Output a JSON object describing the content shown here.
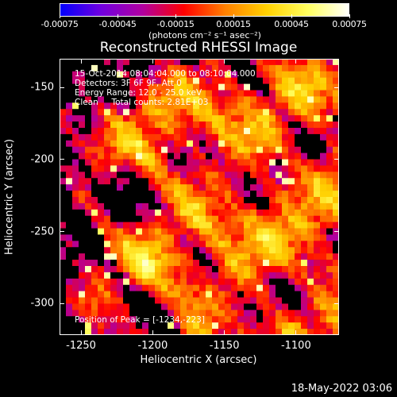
{
  "colorbar": {
    "tick_labels": [
      "-0.00075",
      "-0.00045",
      "-0.00015",
      "0.00015",
      "0.00045",
      "0.00075"
    ],
    "units": "(photons cm⁻² s⁻¹ asec⁻²)"
  },
  "title": "Reconstructed RHESSI Image",
  "info": {
    "time_range": "15-Oct-2014 08:04:04.000 to 08:10:04.000",
    "detectors": "Detectors: 3F 6F 9F, Att 0",
    "energy": "Energy Range: 12.0 - 25.0 keV",
    "method": "Clean     Total counts: 2.81E+03"
  },
  "peak": "Position of Peak = [-1234,-223]",
  "x_axis": {
    "label": "Heliocentric X (arcsec)",
    "ticks": [
      "-1250",
      "-1200",
      "-1150",
      "-1100"
    ]
  },
  "y_axis": {
    "label": "Heliocentric Y (arcsec)",
    "ticks": [
      "-150",
      "-200",
      "-250",
      "-300"
    ]
  },
  "footer_timestamp": "18-May-2022 03:06",
  "chart_data": {
    "type": "heatmap",
    "title": "Reconstructed RHESSI Image",
    "xlabel": "Heliocentric X (arcsec)",
    "ylabel": "Heliocentric Y (arcsec)",
    "xlim": [
      -1265,
      -1070
    ],
    "ylim": [
      -322,
      -130
    ],
    "x_ticks": [
      -1250,
      -1200,
      -1150,
      -1100
    ],
    "y_ticks": [
      -150,
      -200,
      -250,
      -300
    ],
    "colorbar_range": [
      -0.00075,
      0.00075
    ],
    "colormap": [
      "#0000ff",
      "#7000e0",
      "#b000a0",
      "#ff0000",
      "#ff8000",
      "#ffd000",
      "#ffff60",
      "#ffffff"
    ],
    "peak_position": [
      -1234,
      -223
    ]
  }
}
